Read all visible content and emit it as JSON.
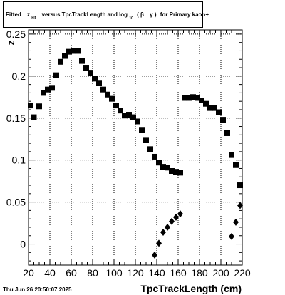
{
  "chart_data": {
    "type": "scatter",
    "title": {
      "t1": "Fitted",
      "z_main": "z",
      "z_sub": "Fit",
      "t2": "versus TpcTrackLength and log",
      "log_sub": "10",
      "paren_open": "(",
      "beta": "β",
      "gamma": "γ",
      "paren_close": ")",
      "t3": "for Primary kaon+"
    },
    "xlabel": "TpcTrackLength (cm)",
    "ylabel": "z",
    "footer_date": "Thu Jun 26 20:50:07 2025",
    "xlim": [
      20,
      220
    ],
    "ylim": [
      -0.025,
      0.255
    ],
    "x_ticks": [
      20,
      40,
      60,
      80,
      100,
      120,
      140,
      160,
      180,
      200,
      220
    ],
    "x_tick_labels": [
      "20",
      "40",
      "60",
      "80",
      "100",
      "120",
      "140",
      "160",
      "180",
      "200",
      "220"
    ],
    "y_ticks": [
      0,
      0.05,
      0.1,
      0.15,
      0.2,
      0.25
    ],
    "y_tick_labels": [
      "0",
      "0.05",
      "0.1",
      "0.15",
      "0.2",
      "0.25"
    ],
    "grid": true,
    "series": [
      {
        "marker": "square",
        "points": [
          [
            22,
            0.165
          ],
          [
            25,
            0.151
          ],
          [
            30,
            0.164
          ],
          [
            34,
            0.18
          ],
          [
            38,
            0.184
          ],
          [
            42,
            0.186
          ],
          [
            46,
            0.201
          ],
          [
            50,
            0.217
          ],
          [
            54,
            0.224
          ],
          [
            58,
            0.229
          ],
          [
            62,
            0.23
          ],
          [
            66,
            0.23
          ],
          [
            70,
            0.218
          ],
          [
            74,
            0.21
          ],
          [
            78,
            0.204
          ],
          [
            82,
            0.197
          ],
          [
            86,
            0.192
          ],
          [
            90,
            0.184
          ],
          [
            94,
            0.178
          ],
          [
            98,
            0.173
          ],
          [
            102,
            0.165
          ],
          [
            106,
            0.159
          ],
          [
            110,
            0.153
          ],
          [
            114,
            0.154
          ],
          [
            118,
            0.151
          ],
          [
            122,
            0.146
          ],
          [
            126,
            0.136
          ],
          [
            130,
            0.124
          ],
          [
            134,
            0.113
          ],
          [
            138,
            0.104
          ],
          [
            142,
            0.097
          ],
          [
            146,
            0.092
          ],
          [
            150,
            0.091
          ],
          [
            154,
            0.087
          ],
          [
            158,
            0.086
          ],
          [
            162,
            0.085
          ],
          [
            166,
            0.174
          ],
          [
            170,
            0.174
          ],
          [
            174,
            0.175
          ],
          [
            178,
            0.174
          ],
          [
            182,
            0.171
          ],
          [
            186,
            0.167
          ],
          [
            190,
            0.162
          ],
          [
            194,
            0.162
          ],
          [
            198,
            0.157
          ],
          [
            202,
            0.148
          ],
          [
            206,
            0.132
          ],
          [
            210,
            0.106
          ],
          [
            214,
            0.094
          ],
          [
            218,
            0.07
          ]
        ]
      },
      {
        "marker": "diamond",
        "points": [
          [
            138,
            -0.013
          ],
          [
            142,
            0.001
          ],
          [
            146,
            0.014
          ],
          [
            150,
            0.02
          ],
          [
            154,
            0.027
          ],
          [
            158,
            0.032
          ],
          [
            162,
            0.036
          ],
          [
            210,
            0.009
          ],
          [
            214,
            0.026
          ],
          [
            218,
            0.046
          ]
        ]
      }
    ]
  }
}
